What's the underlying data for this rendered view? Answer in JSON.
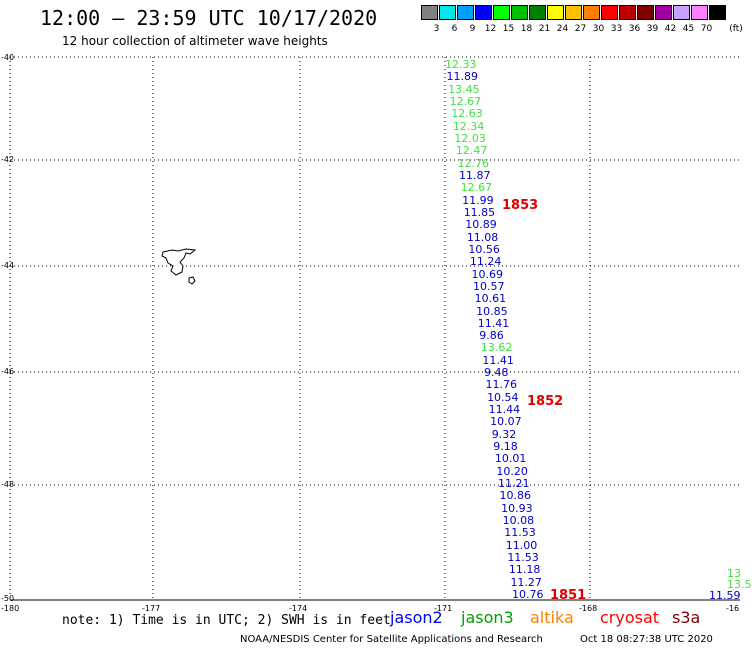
{
  "header": {
    "title": "12:00 — 23:59 UTC 10/17/2020",
    "subtitle": "12 hour collection of altimeter wave heights"
  },
  "color_scale": {
    "unit": "(ft)",
    "bins": [
      {
        "label": "3",
        "color": "#808080"
      },
      {
        "label": "6",
        "color": "#00e8e8"
      },
      {
        "label": "9",
        "color": "#00a0ff"
      },
      {
        "label": "12",
        "color": "#0000ff"
      },
      {
        "label": "15",
        "color": "#00ff00"
      },
      {
        "label": "18",
        "color": "#00c000"
      },
      {
        "label": "21",
        "color": "#008000"
      },
      {
        "label": "24",
        "color": "#ffff00"
      },
      {
        "label": "27",
        "color": "#ffc000"
      },
      {
        "label": "30",
        "color": "#ff8000"
      },
      {
        "label": "33",
        "color": "#ff0000"
      },
      {
        "label": "36",
        "color": "#c00000"
      },
      {
        "label": "39",
        "color": "#800000"
      },
      {
        "label": "42",
        "color": "#a000a0"
      },
      {
        "label": "45",
        "color": "#c8a0ff"
      },
      {
        "label": "70",
        "color": "#ff80ff"
      },
      {
        "label": "",
        "color": "#000000"
      }
    ]
  },
  "map": {
    "lat_labels": [
      "-40",
      "-42",
      "-44",
      "-46",
      "-48",
      "-50"
    ],
    "lon_labels": [
      "-180",
      "-177",
      "-174",
      "-171",
      "-168",
      "-16"
    ]
  },
  "observations": [
    {
      "v": "12.33",
      "c": "#40e040"
    },
    {
      "v": "11.89",
      "c": "#0000c8"
    },
    {
      "v": "13.45",
      "c": "#40e040"
    },
    {
      "v": "12.67",
      "c": "#40e040"
    },
    {
      "v": "12.63",
      "c": "#40e040"
    },
    {
      "v": "12.34",
      "c": "#40e040"
    },
    {
      "v": "12.03",
      "c": "#40e040"
    },
    {
      "v": "12.47",
      "c": "#40e040"
    },
    {
      "v": "12.76",
      "c": "#40e040"
    },
    {
      "v": "11.87",
      "c": "#0000c8"
    },
    {
      "v": "12.67",
      "c": "#40e040"
    },
    {
      "v": "11.99",
      "c": "#0000c8"
    },
    {
      "v": "11.85",
      "c": "#0000c8"
    },
    {
      "v": "10.89",
      "c": "#0000c8"
    },
    {
      "v": "11.08",
      "c": "#0000c8"
    },
    {
      "v": "10.56",
      "c": "#0000c8"
    },
    {
      "v": "11.24",
      "c": "#0000c8"
    },
    {
      "v": "10.69",
      "c": "#0000c8"
    },
    {
      "v": "10.57",
      "c": "#0000c8"
    },
    {
      "v": "10.61",
      "c": "#0000c8"
    },
    {
      "v": "10.85",
      "c": "#0000c8"
    },
    {
      "v": "11.41",
      "c": "#0000c8"
    },
    {
      "v": "9.86",
      "c": "#0000c8"
    },
    {
      "v": "13.62",
      "c": "#40e040"
    },
    {
      "v": "11.41",
      "c": "#0000c8"
    },
    {
      "v": "9.48",
      "c": "#0000c8"
    },
    {
      "v": "11.76",
      "c": "#0000c8"
    },
    {
      "v": "10.54",
      "c": "#0000c8"
    },
    {
      "v": "11.44",
      "c": "#0000c8"
    },
    {
      "v": "10.07",
      "c": "#0000c8"
    },
    {
      "v": "9.32",
      "c": "#0000c8"
    },
    {
      "v": "9.18",
      "c": "#0000c8"
    },
    {
      "v": "10.01",
      "c": "#0000c8"
    },
    {
      "v": "10.20",
      "c": "#0000c8"
    },
    {
      "v": "11.21",
      "c": "#0000c8"
    },
    {
      "v": "10.86",
      "c": "#0000c8"
    },
    {
      "v": "10.93",
      "c": "#0000c8"
    },
    {
      "v": "10.08",
      "c": "#0000c8"
    },
    {
      "v": "11.53",
      "c": "#0000c8"
    },
    {
      "v": "11.00",
      "c": "#0000c8"
    },
    {
      "v": "11.53",
      "c": "#0000c8"
    },
    {
      "v": "11.18",
      "c": "#0000c8"
    },
    {
      "v": "11.27",
      "c": "#0000c8"
    },
    {
      "v": "10.76",
      "c": "#0000c8"
    }
  ],
  "edge_observations": [
    {
      "v": "13",
      "c": "#40e040"
    },
    {
      "v": "13.5",
      "c": "#40e040"
    },
    {
      "v": "11.59",
      "c": "#0000c8"
    }
  ],
  "pass_labels": [
    "1853",
    "1852",
    "1851"
  ],
  "footer": {
    "note": "note: 1) Time is in UTC; 2) SWH is in feet",
    "satellites": [
      {
        "name": "jason2",
        "color": "#0000ff"
      },
      {
        "name": "jason3",
        "color": "#00a000"
      },
      {
        "name": "altika",
        "color": "#ff8000"
      },
      {
        "name": "cryosat",
        "color": "#ff0000"
      },
      {
        "name": "s3a",
        "color": "#800000"
      }
    ],
    "credit": "NOAA/NESDIS Center for Satellite Applications and Research",
    "timestamp": "Oct 18 08:27:38 UTC 2020"
  }
}
